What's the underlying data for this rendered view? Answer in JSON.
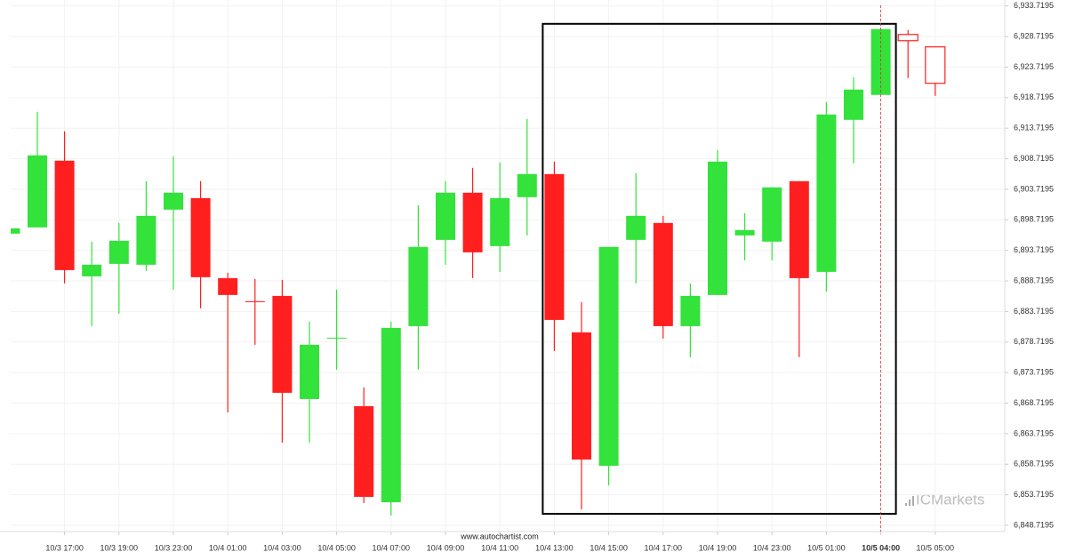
{
  "chart_data": {
    "type": "candlestick",
    "categories": [
      null,
      null,
      "10/3 17:00",
      null,
      "10/3 19:00",
      null,
      "10/3 23:00",
      null,
      "10/4 01:00",
      null,
      "10/4 03:00",
      null,
      "10/4 05:00",
      null,
      "10/4 07:00",
      null,
      "10/4 09:00",
      null,
      "10/4 11:00",
      null,
      "10/4 13:00",
      null,
      "10/4 15:00",
      null,
      "10/4 17:00",
      null,
      "10/4 19:00",
      null,
      "10/4 23:00",
      null,
      "10/5 01:00",
      null,
      "10/5 04:00",
      null,
      "10/5 05:00"
    ],
    "open": [
      6896.46,
      6897.48,
      6908.4,
      6889.47,
      6891.51,
      6891.37,
      6900.39,
      6902.28,
      6889.18,
      6885.4,
      6886.27,
      6869.39,
      6879.29,
      6868.22,
      6852.5,
      6881.32,
      6895.44,
      6903.16,
      6894.42,
      6902.43,
      6906.21,
      6880.3,
      6858.47,
      6895.44,
      6898.21,
      6881.32,
      6886.42,
      6896.17,
      6895.15,
      6905.05,
      6890.2,
      6915.09,
      6919.17,
      6929.06,
      6927.03
    ],
    "high": [
      6897.33,
      6916.4,
      6913.2,
      6895.15,
      6898.21,
      6905.05,
      6909.12,
      6905.05,
      6890.06,
      6889.04,
      6888.89,
      6882.05,
      6887.29,
      6871.28,
      6882.05,
      6901.12,
      6905.05,
      6907.23,
      6908.1,
      6915.24,
      6908.25,
      6885.25,
      6894.28,
      6906.36,
      6899.37,
      6888.31,
      6910.14,
      6899.81,
      6904.03,
      6905.05,
      6918.0,
      6922.08,
      6929.94,
      6929.79,
      6927.03
    ],
    "low": [
      6896.46,
      6897.48,
      6888.31,
      6881.32,
      6883.36,
      6890.35,
      6887.29,
      6884.23,
      6867.2,
      6878.27,
      6862.26,
      6862.26,
      6874.19,
      6852.36,
      6850.32,
      6874.19,
      6891.37,
      6889.18,
      6890.2,
      6896.17,
      6877.25,
      6851.34,
      6855.27,
      6888.31,
      6879.29,
      6876.23,
      6886.42,
      6892.09,
      6892.09,
      6876.23,
      6887.0,
      6907.96,
      6919.17,
      6921.93,
      6919.02
    ],
    "close": [
      6897.33,
      6909.27,
      6890.49,
      6891.37,
      6895.29,
      6899.37,
      6903.16,
      6889.33,
      6886.42,
      6885.25,
      6870.41,
      6878.27,
      6879.43,
      6853.38,
      6881.03,
      6894.28,
      6903.16,
      6893.4,
      6902.28,
      6906.21,
      6882.34,
      6859.49,
      6894.28,
      6899.37,
      6881.32,
      6886.27,
      6908.25,
      6897.04,
      6904.03,
      6889.18,
      6915.96,
      6920.04,
      6929.94,
      6928.04,
      6921.06
    ],
    "up_color": "#33e23b",
    "down_color": "#ff1f1f",
    "forming_candles": 2,
    "ylim": [
      6847.7,
      6934.7
    ],
    "yticks": [
      {
        "value": 6848.7195,
        "label": "6,848.7195"
      },
      {
        "value": 6853.7195,
        "label": "6,853.7195"
      },
      {
        "value": 6858.7195,
        "label": "6,858.7195"
      },
      {
        "value": 6863.7195,
        "label": "6,863.7195"
      },
      {
        "value": 6868.7195,
        "label": "6,868.7195"
      },
      {
        "value": 6873.7195,
        "label": "6,873.7195"
      },
      {
        "value": 6878.7195,
        "label": "6,878.7195"
      },
      {
        "value": 6883.7195,
        "label": "6,883.7195"
      },
      {
        "value": 6888.7195,
        "label": "6,888.7195"
      },
      {
        "value": 6893.7195,
        "label": "6,893.7195"
      },
      {
        "value": 6898.7195,
        "label": "6,898.7195"
      },
      {
        "value": 6903.7195,
        "label": "6,903.7195"
      },
      {
        "value": 6908.7195,
        "label": "6,908.7195"
      },
      {
        "value": 6913.7195,
        "label": "6,913.7195"
      },
      {
        "value": 6918.7195,
        "label": "6,918.7195"
      },
      {
        "value": 6923.7195,
        "label": "6,923.7195"
      },
      {
        "value": 6928.7195,
        "label": "6,928.7195"
      },
      {
        "value": 6933.7195,
        "label": "6,933.7195"
      }
    ],
    "grid": true,
    "pattern_box": {
      "start_index": 20,
      "end_index": 32,
      "high": 6930.8,
      "low": 6850.6
    },
    "marker_index": 32,
    "watermark": "www.autochartist.com",
    "brand": "ICMarkets"
  }
}
